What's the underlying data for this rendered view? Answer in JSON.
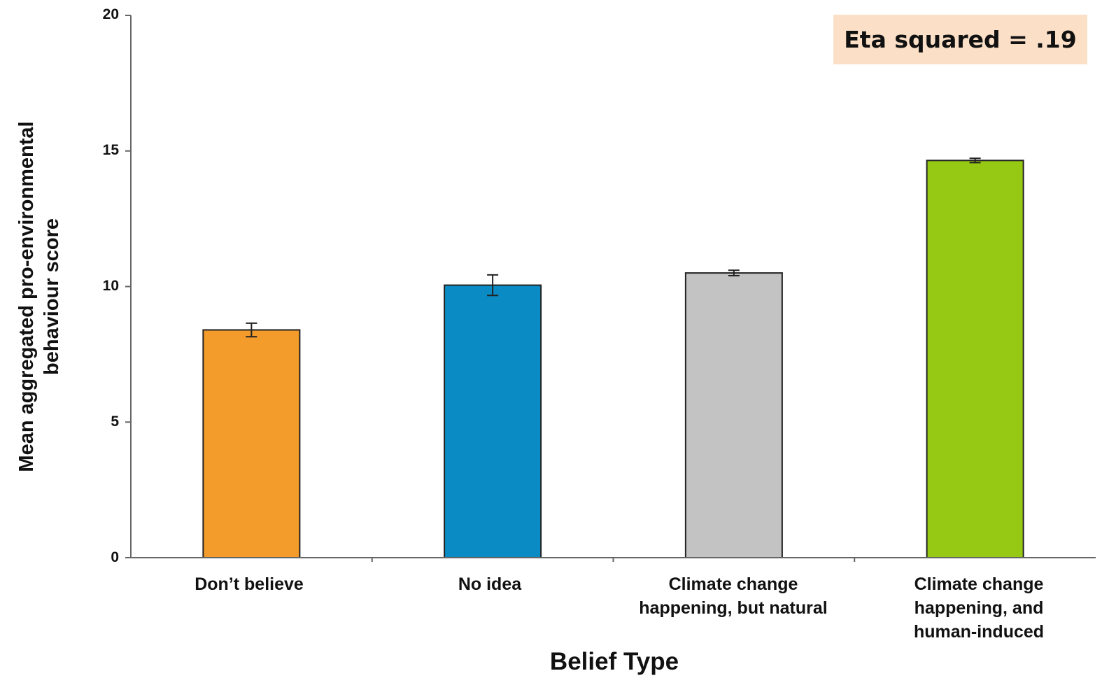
{
  "chart_data": {
    "type": "bar",
    "title": "",
    "xlabel": "Belief Type",
    "ylabel": "Mean aggregated pro-environmental behaviour score",
    "ylim": [
      0,
      20
    ],
    "yticks": [
      "0",
      "5",
      "10",
      "15",
      "20"
    ],
    "categories": [
      "Don’t believe",
      "No idea",
      "Climate change\nhappening, but natural",
      "Climate change\nhappening, and\nhuman-induced"
    ],
    "values": [
      8.4,
      10.05,
      10.5,
      14.65
    ],
    "errors": [
      0.25,
      0.38,
      0.1,
      0.08
    ],
    "colors": [
      "#f39b2b",
      "#0a8bc4",
      "#c3c3c3",
      "#95c913"
    ],
    "annotation": "Eta squared = .19",
    "grid": false,
    "legend": "none"
  }
}
